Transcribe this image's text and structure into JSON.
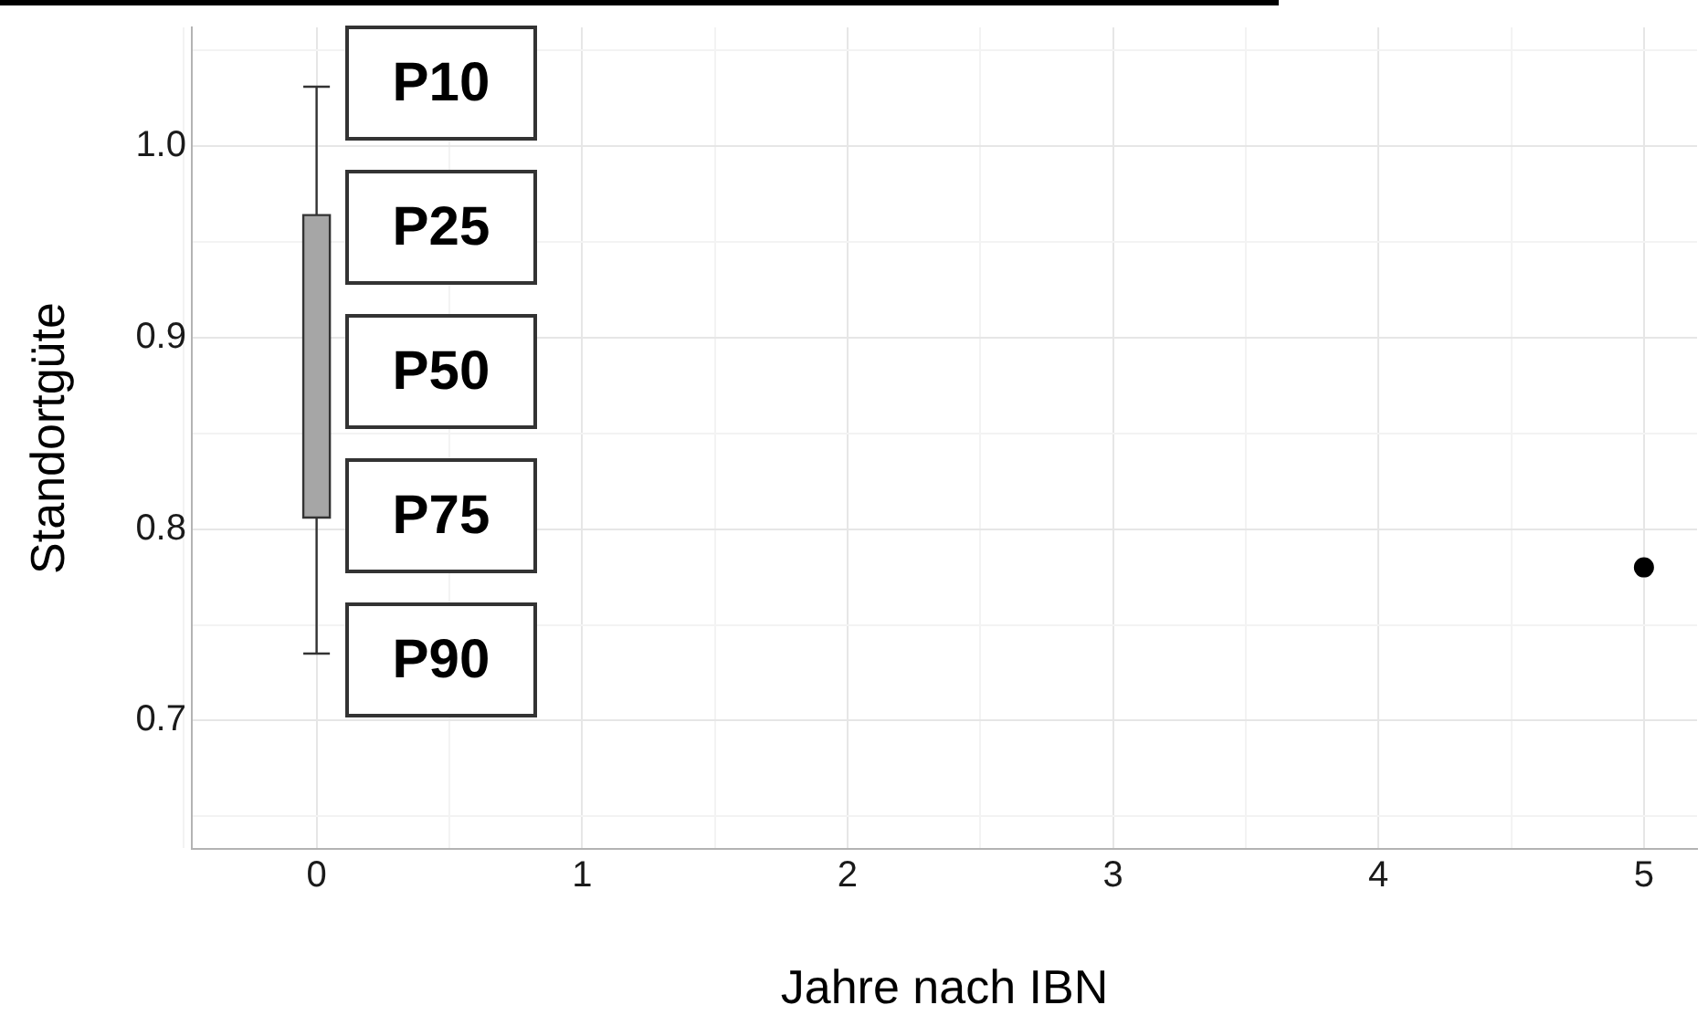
{
  "chart_data": {
    "type": "box",
    "xlabel": "Jahre nach IBN",
    "ylabel": "Standortgüte",
    "ylim": [
      0.633,
      1.062
    ],
    "yticks": [
      0.7,
      0.8,
      0.9,
      {
        "value": 1.0,
        "label": "1.0"
      },
      {
        "value": 0.65,
        "label": null
      },
      {
        "value": 0.75,
        "label": null
      },
      {
        "value": 0.85,
        "label": null
      },
      {
        "value": 0.95,
        "label": null
      },
      {
        "value": 1.05,
        "label": null
      }
    ],
    "grid": true,
    "categories": [
      "0",
      "1",
      "2",
      "3",
      "4",
      "5"
    ],
    "boxes": [
      {
        "low": 0.735,
        "q1": 0.806,
        "median": null,
        "q3": 0.964,
        "high": 1.031
      },
      null,
      null,
      null,
      null,
      null
    ],
    "color": "#a6a6a6",
    "series": [
      {
        "type": "scatter",
        "values": [
          null,
          null,
          null,
          null,
          null,
          0.78
        ],
        "color": "#000000"
      }
    ],
    "annotations": [
      "P10",
      "P25",
      "P50",
      "P75",
      "P90"
    ]
  }
}
